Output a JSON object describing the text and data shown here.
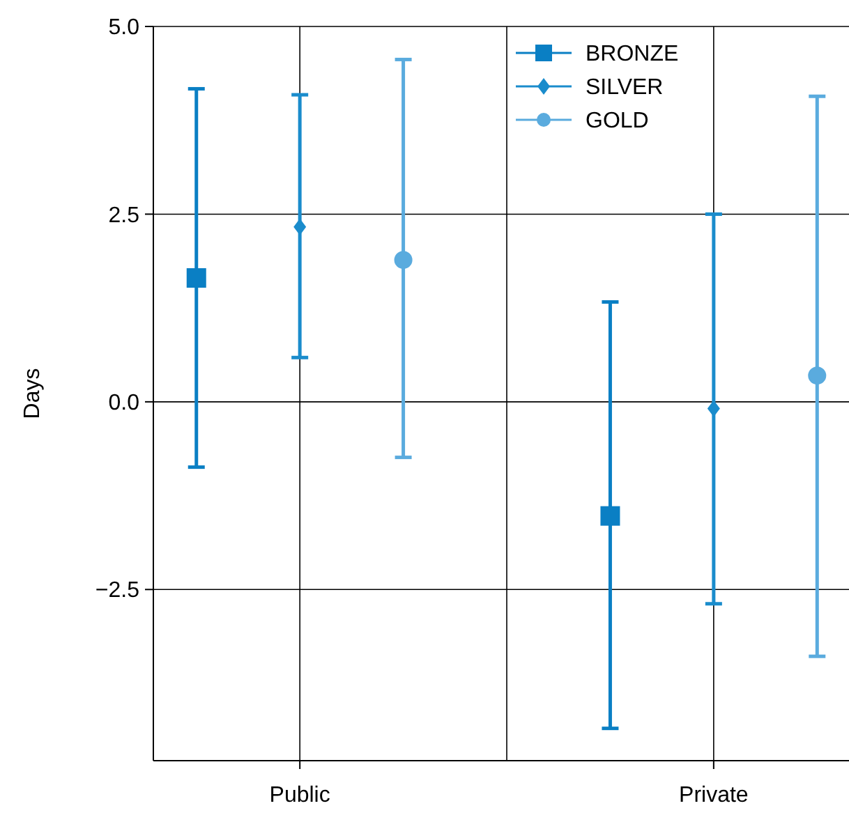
{
  "chart_data": {
    "type": "scatter",
    "ylabel": "Days",
    "categories": [
      "Public",
      "Private"
    ],
    "ylim": [
      -4.78,
      5.0
    ],
    "yticks": [
      {
        "value": 5,
        "label": "5.0"
      },
      {
        "value": 2.5,
        "label": "2.5"
      },
      {
        "value": 0,
        "label": "0.0"
      },
      {
        "value": -2.5,
        "label": "−2.5"
      }
    ],
    "grid": true,
    "legend": "top right",
    "series": [
      {
        "name": "BRONZE",
        "color": "#0a7fc4",
        "marker": "square",
        "values": [
          1.65,
          -1.52
        ],
        "errors": [
          [
            -0.87,
            4.17
          ],
          [
            -4.35,
            1.33
          ]
        ]
      },
      {
        "name": "SILVER",
        "color": "#1a8ccc",
        "marker": "diamond",
        "values": [
          2.33,
          -0.09
        ],
        "errors": [
          [
            0.59,
            4.09
          ],
          [
            -2.69,
            2.5
          ]
        ]
      },
      {
        "name": "GOLD",
        "color": "#5aabde",
        "marker": "circle",
        "values": [
          1.89,
          0.35
        ],
        "errors": [
          [
            -0.74,
            4.56
          ],
          [
            -3.39,
            4.07
          ]
        ]
      }
    ]
  }
}
